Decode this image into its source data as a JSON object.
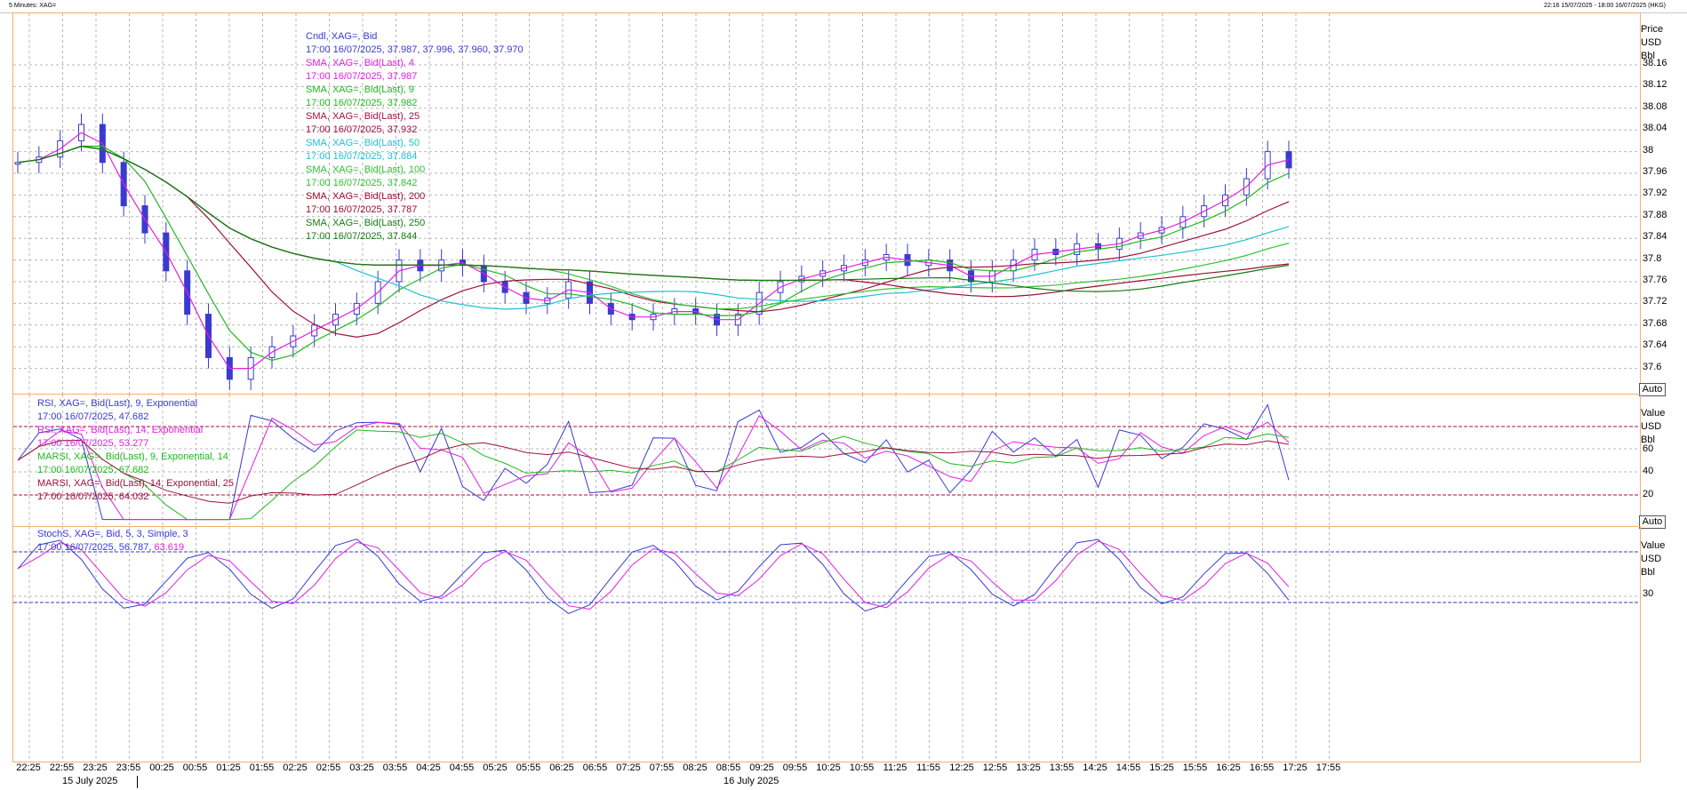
{
  "window": {
    "title": "5 Minutes: XAG=",
    "range": "22:16 15/07/2025 - 18:00 16/07/2025 (HKG)"
  },
  "price_pane": {
    "scale_header": [
      "Price",
      "USD",
      "Bbl"
    ],
    "ticks": [
      "38.16",
      "38.12",
      "38.08",
      "38.04",
      "38",
      "37.96",
      "37.92",
      "37.88",
      "37.84",
      "37.8",
      "37.76",
      "37.72",
      "37.68",
      "37.64",
      "37.6"
    ],
    "auto_label": "Auto",
    "legend": [
      {
        "label": "Cndl, XAG=, Bid",
        "value": "17:00 16/07/2025, 37.987, 37.996, 37.960, 37.970",
        "color": "#3a3ad0"
      },
      {
        "label": "SMA, XAG=, Bid(Last),  4",
        "value": "17:00 16/07/2025, 37.987",
        "color": "#e020e0"
      },
      {
        "label": "SMA, XAG=, Bid(Last),  9",
        "value": "17:00 16/07/2025, 37.982",
        "color": "#1fb81f"
      },
      {
        "label": "SMA, XAG=, Bid(Last),  25",
        "value": "17:00 16/07/2025, 37.932",
        "color": "#a01040"
      },
      {
        "label": "SMA, XAG=, Bid(Last),  50",
        "value": "17:00 16/07/2025, 37.884",
        "color": "#20c0d0"
      },
      {
        "label": "SMA, XAG=, Bid(Last),  100",
        "value": "17:00 16/07/2025, 37.842",
        "color": "#30c030"
      },
      {
        "label": "SMA, XAG=, Bid(Last),  200",
        "value": "17:00 16/07/2025, 37.787",
        "color": "#9a0f2f"
      },
      {
        "label": "SMA, XAG=, Bid(Last),  250",
        "value": "17:00 16/07/2025, 37.844",
        "color": "#157a15"
      }
    ]
  },
  "rsi_pane": {
    "scale_header": [
      "Value",
      "USD",
      "Bbl"
    ],
    "ticks": [
      "60",
      "40",
      "20"
    ],
    "auto_label": "Auto",
    "legend": [
      {
        "label": "RSI, XAG=, Bid(Last),  9, Exponential",
        "value": "17:00 16/07/2025, 47.682",
        "color": "#3a3ad0"
      },
      {
        "label": "RSI, XAG=, Bid(Last),  14, Exponential",
        "value": "17:00 16/07/2025, 53.277",
        "color": "#e020e0"
      },
      {
        "label": "MARSI, XAG=, Bid(Last),  9, Exponential, 14",
        "value": "17:00 16/07/2025, 67.682",
        "color": "#1fb81f"
      },
      {
        "label": "MARSI, XAG=, Bid(Last),  14, Exponential, 25",
        "value": "17:00 16/07/2025, 64.032",
        "color": "#a01040"
      }
    ]
  },
  "stoch_pane": {
    "scale_header": [
      "Value",
      "USD",
      "Bbl"
    ],
    "ticks": [
      "30"
    ],
    "legend": [
      {
        "label": "StochS, XAG=, Bid,  5, 3, Simple, 3",
        "value": "17:00 16/07/2025, 56.787, ",
        "value2": "63.619",
        "color": "#3a3ad0",
        "color2": "#e020e0"
      }
    ]
  },
  "x_axis": {
    "ticks": [
      "22:25",
      "22:55",
      "23:25",
      "23:55",
      "00:25",
      "00:55",
      "01:25",
      "01:55",
      "02:25",
      "02:55",
      "03:25",
      "03:55",
      "04:25",
      "04:55",
      "05:25",
      "05:55",
      "06:25",
      "06:55",
      "07:25",
      "07:55",
      "08:25",
      "08:55",
      "09:25",
      "09:55",
      "10:25",
      "10:55",
      "11:25",
      "11:55",
      "12:25",
      "12:55",
      "13:25",
      "13:55",
      "14:25",
      "14:55",
      "15:25",
      "15:55",
      "16:25",
      "16:55",
      "17:25",
      "17:55"
    ],
    "dates": [
      "15 July 2025",
      "16 July 2025"
    ]
  },
  "chart_data": {
    "type": "line",
    "title": "",
    "candles_close_sample": [
      37.98,
      37.99,
      38.02,
      38.05,
      37.98,
      37.9,
      37.85,
      37.78,
      37.7,
      37.62,
      37.58,
      37.62,
      37.64,
      37.66,
      37.68,
      37.7,
      37.72,
      37.76,
      37.8,
      37.78,
      37.8,
      37.79,
      37.76,
      37.74,
      37.72,
      37.73,
      37.76,
      37.72,
      37.7,
      37.69,
      37.7,
      37.71,
      37.7,
      37.68,
      37.7,
      37.74,
      37.76,
      37.77,
      37.78,
      37.79,
      37.8,
      37.81,
      37.79,
      37.8,
      37.78,
      37.76,
      37.78,
      37.8,
      37.82,
      37.81,
      37.83,
      37.82,
      37.84,
      37.85,
      37.86,
      37.88,
      37.9,
      37.92,
      37.95,
      38.0,
      37.97
    ],
    "series": [
      {
        "name": "SMA 4",
        "color": "#e020e0"
      },
      {
        "name": "SMA 9",
        "color": "#1fb81f"
      },
      {
        "name": "SMA 25",
        "color": "#a01040"
      },
      {
        "name": "SMA 50",
        "color": "#20c0d0"
      },
      {
        "name": "SMA 100",
        "color": "#30c030"
      },
      {
        "name": "SMA 200",
        "color": "#9a0f2f"
      },
      {
        "name": "SMA 250",
        "color": "#157a15"
      }
    ],
    "ylim": [
      37.56,
      38.2
    ]
  }
}
